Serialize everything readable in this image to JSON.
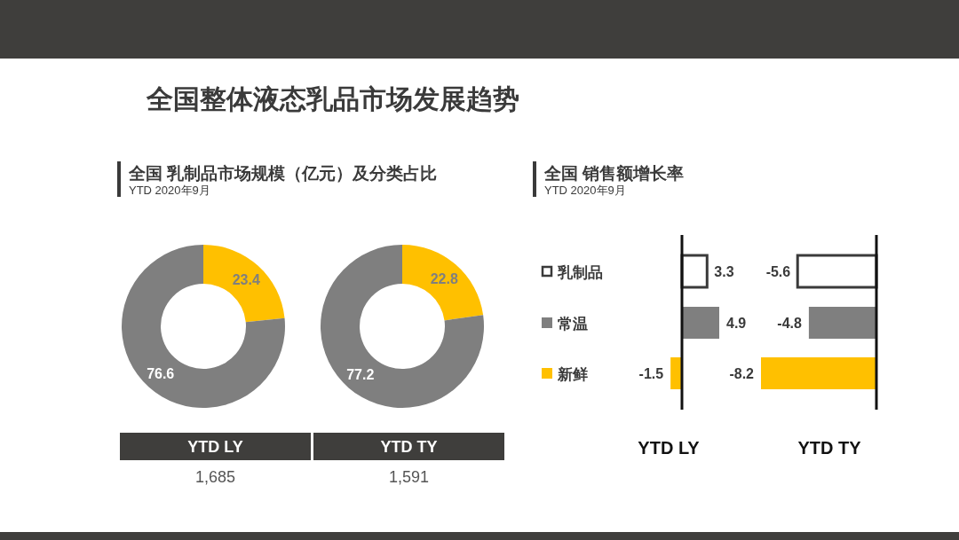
{
  "chart_data": [
    {
      "type": "donut",
      "title": "全国 乳制品市场规模（亿元）及分类占比",
      "subtitle": "YTD 2020年9月",
      "annotations": [
        "全国整体液态乳品市场发展趋势",
        "1,685"
      ],
      "xlabel": "YTD LY",
      "categories": [
        null,
        null
      ],
      "values": [
        23.4,
        76.6
      ],
      "colors": [
        "#ffc000",
        "#7f7f7f"
      ],
      "data_labels": true
    },
    {
      "type": "donut",
      "annotations": [
        "1,591"
      ],
      "xlabel": "YTD TY",
      "categories": [
        null,
        null
      ],
      "values": [
        22.8,
        77.2
      ],
      "colors": [
        "#ffc000",
        "#7f7f7f"
      ],
      "data_labels": true
    },
    {
      "type": "bar",
      "orientation": "horizontal",
      "title": "全国 销售额增长率",
      "subtitle": "YTD 2020年9月",
      "xlabel": "YTD LY",
      "categories": [
        "乳制品",
        "常温",
        "新鲜"
      ],
      "values": [
        3.3,
        4.9,
        -1.5
      ],
      "colors": [
        "#ffffff",
        "#7f7f7f",
        "#ffc000"
      ],
      "data_labels": true
    },
    {
      "type": "bar",
      "orientation": "horizontal",
      "xlabel": "YTD TY",
      "categories": [
        null,
        null,
        null
      ],
      "values": [
        -5.6,
        -4.8,
        -8.2
      ],
      "colors": [
        "#ffffff",
        "#7f7f7f",
        "#ffc000"
      ],
      "data_labels": true
    }
  ]
}
